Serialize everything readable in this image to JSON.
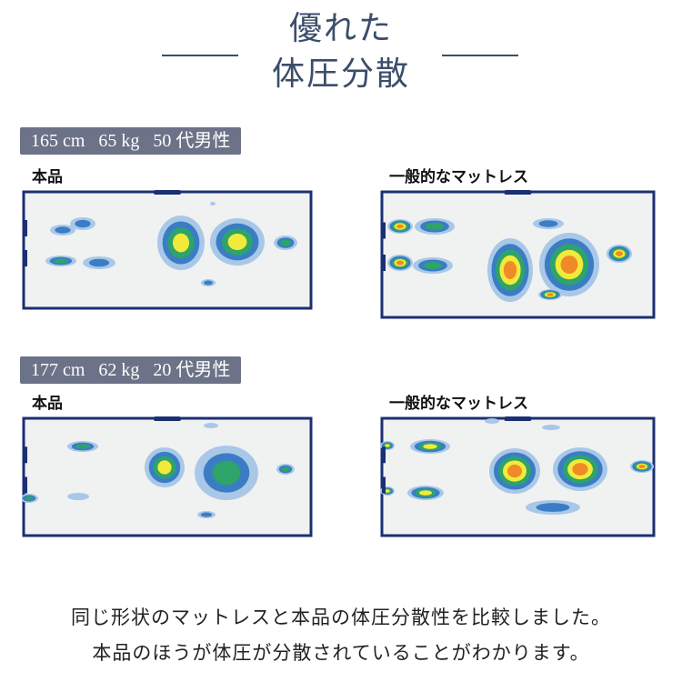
{
  "title": {
    "line1": "優れた",
    "line2": "体圧分散"
  },
  "comparisons": [
    {
      "badge": "165 cm   65 kg   50 代男性",
      "left_label": "本品",
      "right_label": "一般的なマットレス"
    },
    {
      "badge": "177 cm   62 kg   20 代男性",
      "left_label": "本品",
      "right_label": "一般的なマットレス"
    }
  ],
  "caption": {
    "line1": "同じ形状のマットレスと本品の体圧分散性を比較しました。",
    "line2": "本品のほうが体圧が分散されていることがわかります。"
  },
  "colors": {
    "title": "#3b4d6b",
    "badge": "#6c7287",
    "frame": "#1b2f73",
    "map_bg": "#f0f1f1",
    "pressure_levels": [
      "#a9c8e8",
      "#3a7dc4",
      "#2ea36a",
      "#f2ea3a",
      "#f08a28"
    ]
  }
}
